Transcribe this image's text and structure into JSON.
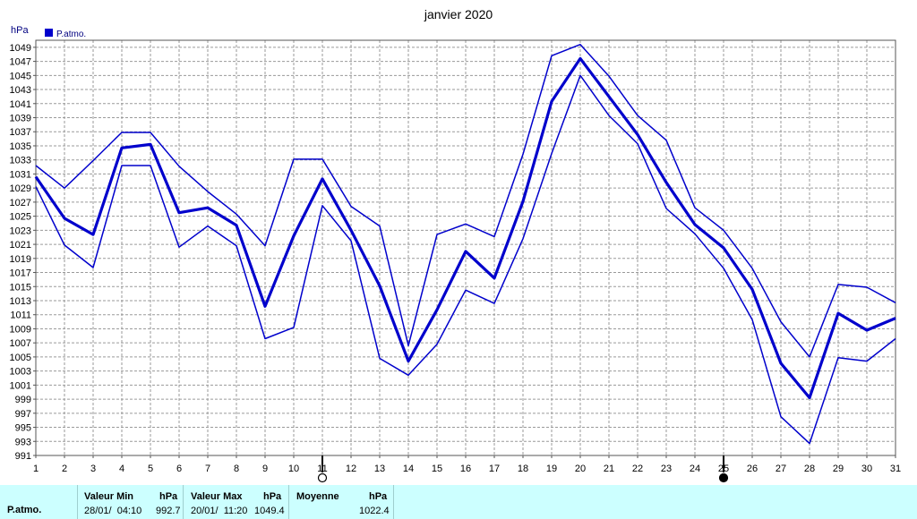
{
  "chart_data": {
    "type": "line",
    "title": "janvier 2020",
    "ylabel": "hPa",
    "legend": {
      "label": "P.atmo.",
      "color": "#0000cc",
      "placement": "top-left"
    },
    "x": [
      1,
      2,
      3,
      4,
      5,
      6,
      7,
      8,
      9,
      10,
      11,
      12,
      13,
      14,
      15,
      16,
      17,
      18,
      19,
      20,
      21,
      22,
      23,
      24,
      25,
      26,
      27,
      28,
      29,
      30,
      31
    ],
    "ylim": [
      991,
      1050
    ],
    "yticks": [
      991,
      993,
      995,
      997,
      999,
      1001,
      1003,
      1005,
      1007,
      1009,
      1011,
      1013,
      1015,
      1017,
      1019,
      1021,
      1023,
      1025,
      1027,
      1029,
      1031,
      1033,
      1035,
      1037,
      1039,
      1041,
      1043,
      1045,
      1047,
      1049
    ],
    "grid": true,
    "moon_markers": [
      {
        "day": 11,
        "phase": "full-moon"
      },
      {
        "day": 25,
        "phase": "new-moon"
      }
    ],
    "series": [
      {
        "role": "max",
        "width": 1.5,
        "values": [
          1032.2,
          1029,
          1032.9,
          1036.9,
          1036.9,
          1032.1,
          1028.5,
          1025.3,
          1020.8,
          1033.1,
          1033.1,
          1026.4,
          1023.6,
          1006.6,
          1022.4,
          1023.9,
          1022.1,
          1033.8,
          1047.8,
          1049.4,
          1044.9,
          1039.3,
          1035.8,
          1026.2,
          1023,
          1017.6,
          1010,
          1005,
          1015.3,
          1014.9,
          1012.7
        ]
      },
      {
        "role": "mean",
        "width": 3.2,
        "values": [
          1030.6,
          1024.7,
          1022.4,
          1034.7,
          1035.2,
          1025.5,
          1026.2,
          1023.7,
          1012.2,
          1022.2,
          1030.3,
          1023,
          1015.1,
          1004.4,
          1011.7,
          1020,
          1016.2,
          1027.1,
          1041.3,
          1047.4,
          1042,
          1036.6,
          1029.8,
          1023.8,
          1020.5,
          1014.6,
          1004.1,
          999.2,
          1011.2,
          1008.8,
          1010.5
        ]
      },
      {
        "role": "min",
        "width": 1.5,
        "values": [
          1029.2,
          1020.9,
          1017.7,
          1032.2,
          1032.2,
          1020.6,
          1023.6,
          1020.8,
          1007.6,
          1009.2,
          1026.5,
          1021.5,
          1004.8,
          1002.4,
          1006.8,
          1014.5,
          1012.6,
          1021.8,
          1033.9,
          1045,
          1039.3,
          1035.3,
          1026.1,
          1022.5,
          1017.6,
          1010.3,
          996.5,
          992.7,
          1004.9,
          1004.4,
          1007.6
        ]
      }
    ]
  },
  "summary": {
    "row_label": "P.atmo.",
    "min": {
      "header": "Valeur Min",
      "unit": "hPa",
      "date": "28/01/  04:10",
      "value": "992.7"
    },
    "max": {
      "header": "Valeur Max",
      "unit": "hPa",
      "date": "20/01/  11:20",
      "value": "1049.4"
    },
    "mean": {
      "header": "Moyenne",
      "unit": "hPa",
      "value": "1022.4"
    }
  }
}
